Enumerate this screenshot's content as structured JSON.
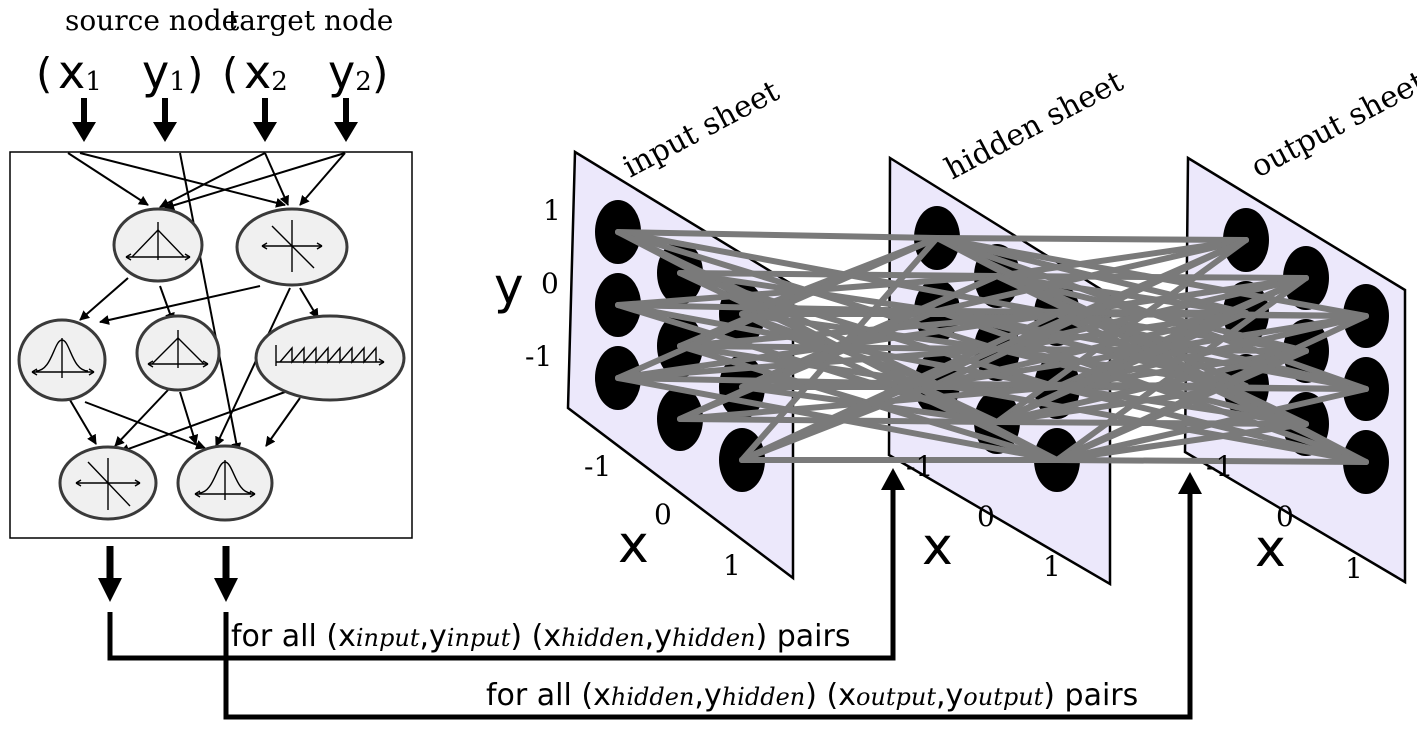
{
  "cppn": {
    "header_source": "source node",
    "header_target": "target node",
    "inputs": [
      {
        "letter": "x",
        "sub": "1"
      },
      {
        "letter": "y",
        "sub": "1"
      },
      {
        "letter": "x",
        "sub": "2"
      },
      {
        "letter": "y",
        "sub": "2"
      }
    ],
    "open_paren": "(",
    "close_paren": ")",
    "node_functions": [
      "triangle-wave-icon",
      "linear-cross-icon",
      "gaussian-icon",
      "triangle-wave-icon",
      "sawtooth-icon",
      "linear-cross-icon",
      "gaussian-icon"
    ]
  },
  "sheets": [
    {
      "label": "input sheet"
    },
    {
      "label": "hidden sheet"
    },
    {
      "label": "output sheet"
    }
  ],
  "axes": {
    "y_letter": "y",
    "x_letter": "x",
    "y_ticks": [
      "1",
      "0",
      "-1"
    ],
    "x_ticks": [
      "-1",
      "0",
      "1"
    ]
  },
  "queries": {
    "line1": {
      "prefix": "for all (",
      "a_letter": "x",
      "a_sub": "input",
      "comma": ",",
      "b_letter": "y",
      "b_sub": "input",
      "mid": ") (",
      "c_letter": "x",
      "c_sub": "hidden",
      "d_letter": "y",
      "d_sub": "hidden",
      "suffix": ") pairs"
    },
    "line2": {
      "prefix": "for all (",
      "a_letter": "x",
      "a_sub": "hidden",
      "comma": ",",
      "b_letter": "y",
      "b_sub": "hidden",
      "mid": ") (",
      "c_letter": "x",
      "c_sub": "output",
      "d_letter": "y",
      "d_sub": "output",
      "suffix": ") pairs"
    }
  },
  "colors": {
    "sheet_fill": "#ece8fb",
    "connection": "#7a7a7a",
    "node": "#000000"
  }
}
